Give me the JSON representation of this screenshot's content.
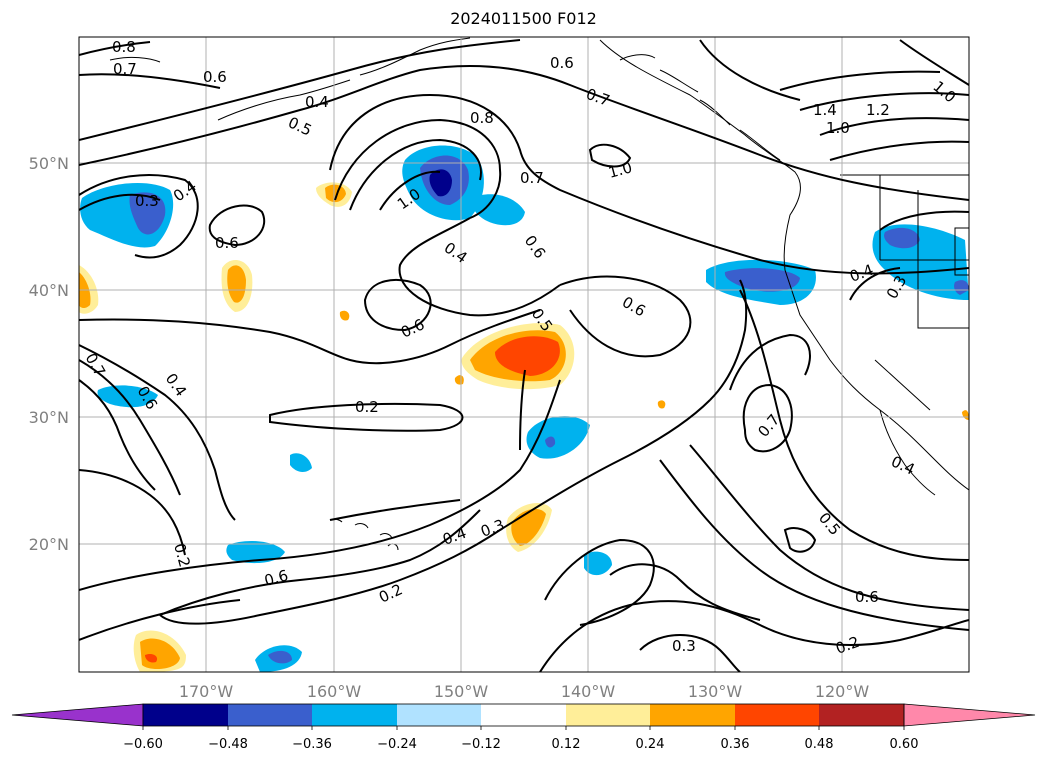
{
  "title": "2024011500 F012",
  "lat_labels": [
    "50°N",
    "40°N",
    "30°N",
    "20°N"
  ],
  "lon_labels": [
    "170°W",
    "160°W",
    "150°W",
    "140°W",
    "130°W",
    "120°W"
  ],
  "contour_labels": [
    "0.8",
    "0.7",
    "0.6",
    "0.4",
    "0.5",
    "0.6",
    "0.8",
    "0.7",
    "1.4",
    "1.2",
    "1.0",
    "1.0",
    "0.3",
    "0.4",
    "0.6",
    "1.0",
    "0.7",
    "1.0",
    "0.6",
    "0.4",
    "0.5",
    "0.6",
    "0.6",
    "0.4",
    "0.3",
    "0.7",
    "0.6",
    "0.4",
    "0.7",
    "0.2",
    "0.4",
    "0.3",
    "0.2",
    "0.4",
    "0.2",
    "0.5",
    "0.6",
    "0.3",
    "0.2"
  ],
  "colorbar": {
    "tick_labels": [
      "−0.60",
      "−0.48",
      "−0.36",
      "−0.24",
      "−0.12",
      "0.12",
      "0.24",
      "0.36",
      "0.48",
      "0.60"
    ],
    "colors": [
      "#9932cc",
      "#00008b",
      "#3a5fcd",
      "#00b2ee",
      "#b0e2ff",
      "#ffffff",
      "#ffee99",
      "#ffa500",
      "#ff4500",
      "#b22222",
      "#ff88aa"
    ]
  }
}
